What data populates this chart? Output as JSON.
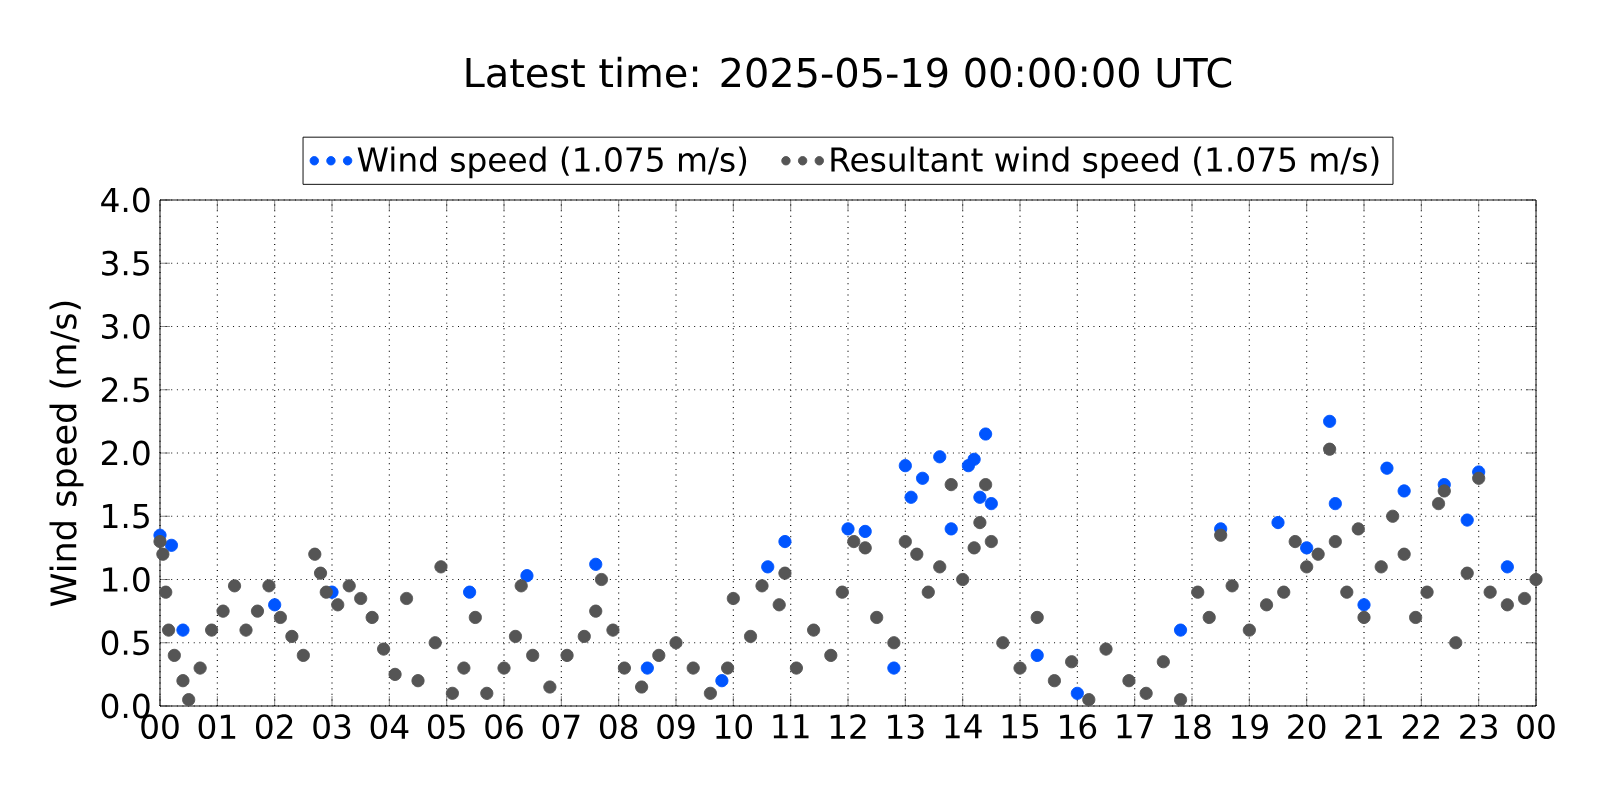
{
  "chart_data": {
    "type": "scatter",
    "title": "Latest time: 2025-05-19 00:00:00 UTC",
    "ylabel": "Wind speed (m/s)",
    "xlim": [
      0,
      24
    ],
    "ylim": [
      0,
      4.0
    ],
    "xticks": [
      {
        "value": 0,
        "label": "00"
      },
      {
        "value": 1,
        "label": "01"
      },
      {
        "value": 2,
        "label": "02"
      },
      {
        "value": 3,
        "label": "03"
      },
      {
        "value": 4,
        "label": "04"
      },
      {
        "value": 5,
        "label": "05"
      },
      {
        "value": 6,
        "label": "06"
      },
      {
        "value": 7,
        "label": "07"
      },
      {
        "value": 8,
        "label": "08"
      },
      {
        "value": 9,
        "label": "09"
      },
      {
        "value": 10,
        "label": "10"
      },
      {
        "value": 11,
        "label": "11"
      },
      {
        "value": 12,
        "label": "12"
      },
      {
        "value": 13,
        "label": "13"
      },
      {
        "value": 14,
        "label": "14"
      },
      {
        "value": 15,
        "label": "15"
      },
      {
        "value": 16,
        "label": "16"
      },
      {
        "value": 17,
        "label": "17"
      },
      {
        "value": 18,
        "label": "18"
      },
      {
        "value": 19,
        "label": "19"
      },
      {
        "value": 20,
        "label": "20"
      },
      {
        "value": 21,
        "label": "21"
      },
      {
        "value": 22,
        "label": "22"
      },
      {
        "value": 23,
        "label": "23"
      },
      {
        "value": 24,
        "label": "00"
      }
    ],
    "yticks": [
      {
        "value": 0,
        "label": "0.0"
      },
      {
        "value": 0.5,
        "label": "0.5"
      },
      {
        "value": 1,
        "label": "1.0"
      },
      {
        "value": 1.5,
        "label": "1.5"
      },
      {
        "value": 2,
        "label": "2.0"
      },
      {
        "value": 2.5,
        "label": "2.5"
      },
      {
        "value": 3,
        "label": "3.0"
      },
      {
        "value": 3.5,
        "label": "3.5"
      },
      {
        "value": 4,
        "label": "4.0"
      }
    ],
    "grid": true,
    "legend": "top",
    "marker": "circle",
    "series": [
      {
        "name": "Wind speed (1.075 m/s)",
        "color": "#0055ff",
        "x": [
          0.0,
          0.2,
          0.4,
          2.0,
          3.0,
          5.4,
          6.4,
          7.6,
          8.5,
          9.8,
          10.6,
          10.9,
          12.0,
          12.3,
          12.8,
          13.0,
          13.1,
          13.3,
          13.6,
          13.8,
          14.1,
          14.2,
          14.3,
          14.4,
          14.5,
          15.3,
          16.0,
          17.8,
          18.5,
          19.5,
          20.0,
          20.4,
          20.5,
          21.0,
          21.4,
          21.7,
          22.4,
          22.8,
          23.0,
          23.5
        ],
        "values": [
          1.35,
          1.27,
          0.6,
          0.8,
          0.9,
          0.9,
          1.03,
          1.12,
          0.3,
          0.2,
          1.1,
          1.3,
          1.4,
          1.38,
          0.3,
          1.9,
          1.65,
          1.8,
          1.97,
          1.4,
          1.9,
          1.95,
          1.65,
          2.15,
          1.6,
          0.4,
          0.1,
          0.6,
          1.4,
          1.45,
          1.25,
          2.25,
          1.6,
          0.8,
          1.88,
          1.7,
          1.75,
          1.47,
          1.85,
          1.1
        ]
      },
      {
        "name": "Resultant wind speed (1.075 m/s)",
        "color": "#555555",
        "x": [
          0.0,
          0.05,
          0.1,
          0.15,
          0.25,
          0.4,
          0.5,
          0.7,
          0.9,
          1.1,
          1.3,
          1.5,
          1.7,
          1.9,
          2.1,
          2.3,
          2.5,
          2.7,
          2.8,
          2.9,
          3.1,
          3.3,
          3.5,
          3.7,
          3.9,
          4.1,
          4.3,
          4.5,
          4.8,
          4.9,
          5.1,
          5.3,
          5.5,
          5.7,
          6.0,
          6.2,
          6.3,
          6.5,
          6.8,
          7.1,
          7.4,
          7.6,
          7.7,
          7.9,
          8.1,
          8.4,
          8.7,
          9.0,
          9.3,
          9.6,
          9.9,
          10.0,
          10.3,
          10.5,
          10.8,
          10.9,
          11.1,
          11.4,
          11.7,
          11.9,
          12.1,
          12.3,
          12.5,
          12.8,
          13.0,
          13.2,
          13.4,
          13.6,
          13.8,
          14.0,
          14.2,
          14.3,
          14.4,
          14.5,
          14.7,
          15.0,
          15.3,
          15.6,
          15.9,
          16.2,
          16.5,
          16.9,
          17.2,
          17.5,
          17.8,
          18.1,
          18.3,
          18.5,
          18.7,
          19.0,
          19.3,
          19.6,
          19.8,
          20.0,
          20.2,
          20.4,
          20.5,
          20.7,
          20.9,
          21.0,
          21.3,
          21.5,
          21.7,
          21.9,
          22.1,
          22.3,
          22.4,
          22.6,
          22.8,
          23.0,
          23.2,
          23.5,
          23.8,
          24.0
        ],
        "values": [
          1.3,
          1.2,
          0.9,
          0.6,
          0.4,
          0.2,
          0.05,
          0.3,
          0.6,
          0.75,
          0.95,
          0.6,
          0.75,
          0.95,
          0.7,
          0.55,
          0.4,
          1.2,
          1.05,
          0.9,
          0.8,
          0.95,
          0.85,
          0.7,
          0.45,
          0.25,
          0.85,
          0.2,
          0.5,
          1.1,
          0.1,
          0.3,
          0.7,
          0.1,
          0.3,
          0.55,
          0.95,
          0.4,
          0.15,
          0.4,
          0.55,
          0.75,
          1.0,
          0.6,
          0.3,
          0.15,
          0.4,
          0.5,
          0.3,
          0.1,
          0.3,
          0.85,
          0.55,
          0.95,
          0.8,
          1.05,
          0.3,
          0.6,
          0.4,
          0.9,
          1.3,
          1.25,
          0.7,
          0.5,
          1.3,
          1.2,
          0.9,
          1.1,
          1.75,
          1.0,
          1.25,
          1.45,
          1.75,
          1.3,
          0.5,
          0.3,
          0.7,
          0.2,
          0.35,
          0.05,
          0.45,
          0.2,
          0.1,
          0.35,
          0.05,
          0.9,
          0.7,
          1.35,
          0.95,
          0.6,
          0.8,
          0.9,
          1.3,
          1.1,
          1.2,
          2.03,
          1.3,
          0.9,
          1.4,
          0.7,
          1.1,
          1.5,
          1.2,
          0.7,
          0.9,
          1.6,
          1.7,
          0.5,
          1.05,
          1.8,
          0.9,
          0.8,
          0.85,
          1.0
        ]
      }
    ]
  }
}
